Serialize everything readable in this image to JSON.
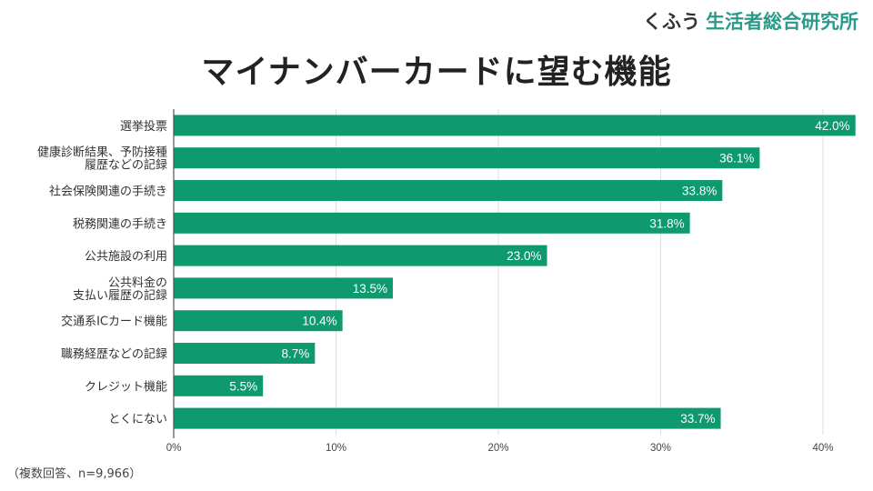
{
  "brand": {
    "prefix": "くふう",
    "name": "生活者総合研究所"
  },
  "footnote": "（複数回答、n=9,966）",
  "colors": {
    "bar": "#0e9a6e",
    "grid": "#dddddd",
    "axis": "#555555"
  },
  "chart_data": {
    "type": "bar",
    "orientation": "horizontal",
    "title": "マイナンバーカードに望む機能",
    "categories": [
      [
        "選挙投票"
      ],
      [
        "健康診断結果、予防接種",
        "履歴などの記録"
      ],
      [
        "社会保険関連の手続き"
      ],
      [
        "税務関連の手続き"
      ],
      [
        "公共施設の利用"
      ],
      [
        "公共料金の",
        "支払い履歴の記録"
      ],
      [
        "交通系ICカード機能"
      ],
      [
        "職務経歴などの記録"
      ],
      [
        "クレジット機能"
      ],
      [
        "とくにない"
      ]
    ],
    "values": [
      42.0,
      36.1,
      33.8,
      31.8,
      23.0,
      13.5,
      10.4,
      8.7,
      5.5,
      33.7
    ],
    "value_labels": [
      "42.0%",
      "36.1%",
      "33.8%",
      "31.8%",
      "23.0%",
      "13.5%",
      "10.4%",
      "8.7%",
      "5.5%",
      "33.7%"
    ],
    "xlim": [
      0,
      42
    ],
    "xticks": [
      0,
      10,
      20,
      30,
      40
    ],
    "xtick_labels": [
      "0%",
      "10%",
      "20%",
      "30%",
      "40%"
    ],
    "grid": true,
    "xlabel": "",
    "ylabel": ""
  }
}
